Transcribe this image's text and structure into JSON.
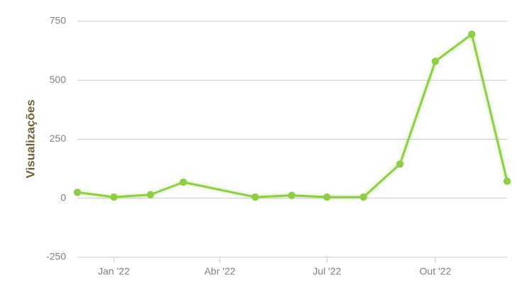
{
  "chart_data": {
    "type": "line",
    "title": "",
    "xlabel": "",
    "ylabel": "Visualizações",
    "x": [
      "2021-12-01",
      "2022-01-01",
      "2022-02-01",
      "2022-03-01",
      "2022-05-01",
      "2022-06-01",
      "2022-07-01",
      "2022-08-01",
      "2022-09-01",
      "2022-10-01",
      "2022-11-01",
      "2022-12-01"
    ],
    "series": [
      {
        "values": [
          25,
          5,
          15,
          68,
          5,
          12,
          5,
          5,
          145,
          580,
          695,
          72
        ],
        "color": "#8fcd45"
      }
    ],
    "x_ticks": [
      {
        "date": "2022-01-01",
        "label": "Jan '22"
      },
      {
        "date": "2022-04-01",
        "label": "Abr '22"
      },
      {
        "date": "2022-07-01",
        "label": "Jul '22"
      },
      {
        "date": "2022-10-01",
        "label": "Out '22"
      }
    ],
    "y_ticks": [
      750,
      500,
      250,
      0,
      -250
    ],
    "xlim": [
      "2021-12-01",
      "2022-12-01"
    ],
    "ylim": [
      -250,
      750
    ],
    "grid": "horizontal",
    "legend": "none"
  },
  "colors": {
    "line": "#8fcd45",
    "grid": "#c8c8c8",
    "tick_text": "#7f7f7f",
    "axis_title": "#6b6436"
  }
}
